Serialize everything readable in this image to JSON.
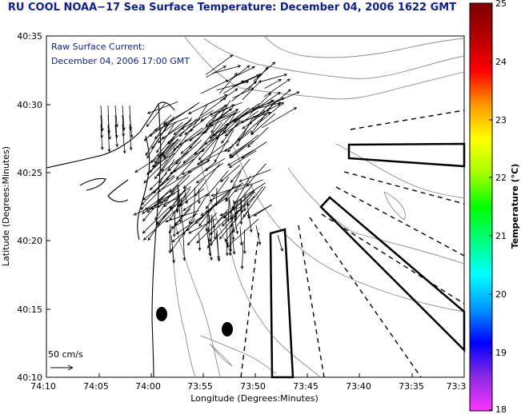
{
  "title": "RU COOL  NOAA−17  Sea Surface Temperature:  December 04, 2006 1622 GMT",
  "current_label": "Raw Surface Current:",
  "current_date": "December 04, 2006 17:00 GMT",
  "scale_label": "50 cm/s",
  "xlabel": "Longitude (Degrees:Minutes)",
  "ylabel": "Latitude (Degrees:Minutes)",
  "x_ticks": [
    "74:10",
    "74:05",
    "74:00",
    "73:55",
    "73:50",
    "73:45",
    "73:40",
    "73:35",
    "73:3"
  ],
  "y_ticks": [
    "40:35",
    "40:30",
    "40:25",
    "40:20",
    "40:15",
    "40:10"
  ],
  "colorbar": {
    "label": "Temperature (°C)",
    "ticks": [
      "25",
      "24",
      "23",
      "22",
      "21",
      "20",
      "19",
      "18"
    ],
    "colors": [
      "#ff33ff",
      "#8a2be2",
      "#0000ff",
      "#0096ff",
      "#00ffff",
      "#00ff80",
      "#00ff00",
      "#a6ff00",
      "#ffff00",
      "#ff9900",
      "#ff0000",
      "#b30000",
      "#800000"
    ]
  }
}
